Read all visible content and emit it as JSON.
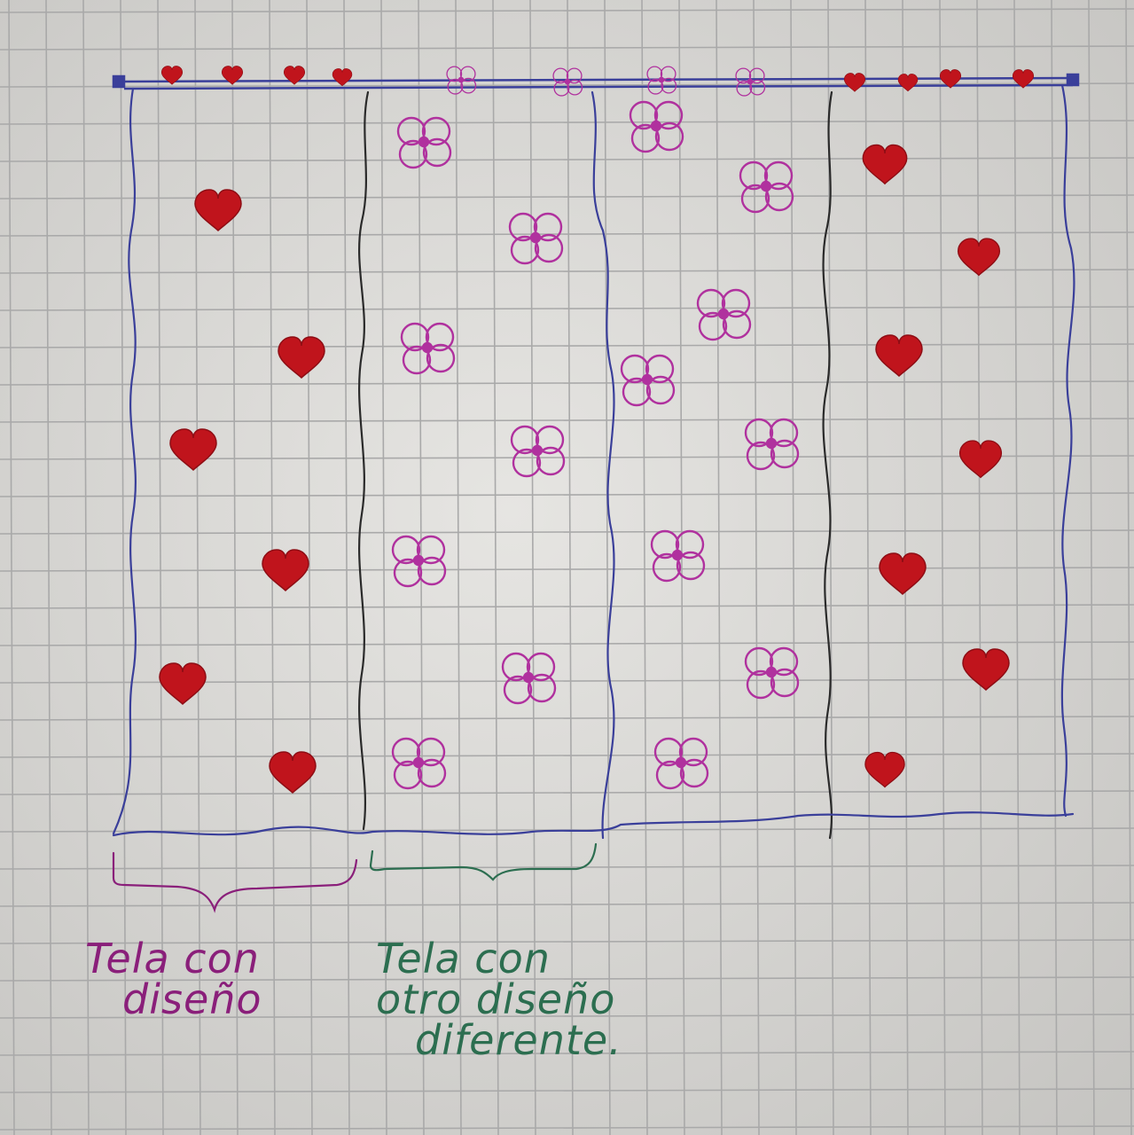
{
  "colors": {
    "paper": "#dcdbd8",
    "grid_line": "#a9a9a9",
    "blue_pen": "#3a3f9a",
    "black_pen": "#2a2a2a",
    "heart": "#c0141c",
    "flower": "#b0319e",
    "purple_pen": "#8a1f7a",
    "green_pen": "#2c6e50"
  },
  "icons": {
    "heart": "heart-icon",
    "flower": "flower-icon"
  },
  "labels": {
    "left_panel": {
      "line1": "Tela con",
      "line2": "diseño"
    },
    "middle_panel": {
      "line1": "Tela con",
      "line2": "otro diseño",
      "line3": "diferente."
    }
  }
}
